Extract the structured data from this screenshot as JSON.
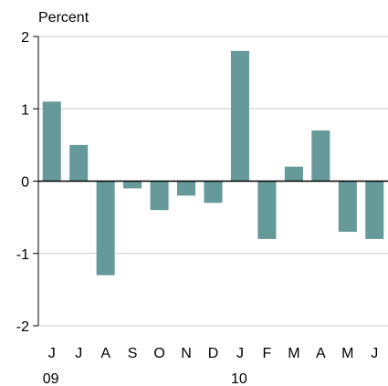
{
  "chart_data": {
    "type": "bar",
    "unit_label": "Percent",
    "categories": [
      "J",
      "J",
      "A",
      "S",
      "O",
      "N",
      "D",
      "J",
      "F",
      "M",
      "A",
      "M",
      "J"
    ],
    "year_labels": [
      {
        "index": 0,
        "text": "09"
      },
      {
        "index": 7,
        "text": "10"
      }
    ],
    "values": [
      1.1,
      0.5,
      -1.3,
      -0.1,
      -0.4,
      -0.2,
      -0.3,
      1.8,
      -0.8,
      0.2,
      0.7,
      -0.7,
      -0.8
    ],
    "ylim": [
      -2,
      2
    ],
    "yticks": [
      2,
      1,
      0,
      -1,
      -2
    ],
    "grid": true,
    "bar_color": "#669999",
    "grid_color": "#cccccc"
  }
}
